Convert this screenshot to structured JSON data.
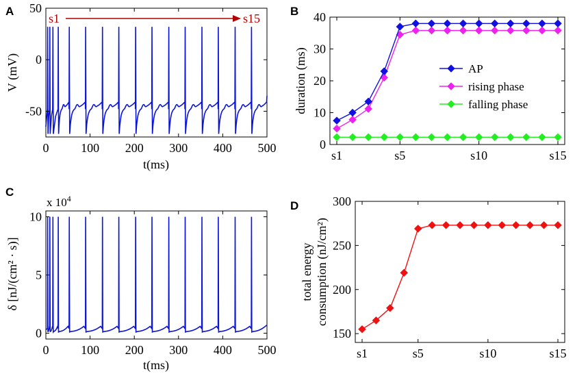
{
  "panels": {
    "a": "A",
    "b": "B",
    "c": "C",
    "d": "D"
  },
  "chart_data": [
    {
      "id": "A",
      "type": "line",
      "xlabel": "t(ms)",
      "ylabel": "V (mV)",
      "xlim": [
        0,
        500
      ],
      "ylim": [
        -75,
        50
      ],
      "xticks": [
        "0",
        "100",
        "200",
        "300",
        "400",
        "500"
      ],
      "xtick_values": [
        0,
        100,
        200,
        300,
        400,
        500
      ],
      "yticks": [
        "50",
        "0",
        "-50"
      ],
      "ytick_values": [
        50,
        0,
        -50
      ],
      "spike_peak": 32,
      "spike_trough": -72,
      "spike_times": [
        4,
        9,
        16,
        28,
        53,
        90,
        128,
        165,
        203,
        240,
        278,
        315,
        353,
        390,
        428,
        465
      ],
      "arrow_start": "s1",
      "arrow_end": "s15",
      "color": "#0a14d8"
    },
    {
      "id": "B",
      "type": "line",
      "xlabel": "",
      "ylabel": "duration (ms)",
      "ylim": [
        0,
        40
      ],
      "xlim": [
        1,
        15
      ],
      "xticks": [
        "s1",
        "s5",
        "s10",
        "s15"
      ],
      "xtick_values": [
        1,
        5,
        10,
        15
      ],
      "yticks": [
        "0",
        "10",
        "20",
        "30",
        "40"
      ],
      "ytick_values": [
        0,
        10,
        20,
        30,
        40
      ],
      "x": [
        1,
        2,
        3,
        4,
        5,
        6,
        7,
        8,
        9,
        10,
        11,
        12,
        13,
        14,
        15
      ],
      "series": [
        {
          "name": "AP",
          "color": "#1010e0",
          "values": [
            7.5,
            10,
            13.5,
            23,
            37,
            38,
            38,
            38,
            38,
            38,
            38,
            38,
            38,
            38,
            38
          ]
        },
        {
          "name": "rising phase",
          "color": "#ee22ee",
          "values": [
            5,
            7.8,
            11.2,
            21,
            34.5,
            35.8,
            35.8,
            35.8,
            35.8,
            35.8,
            35.8,
            35.8,
            35.8,
            35.8,
            35.8
          ]
        },
        {
          "name": "falling phase",
          "color": "#22ee22",
          "values": [
            2.3,
            2.3,
            2.3,
            2.3,
            2.3,
            2.3,
            2.3,
            2.3,
            2.3,
            2.3,
            2.3,
            2.3,
            2.3,
            2.3,
            2.3
          ]
        }
      ],
      "legend": "center-right"
    },
    {
      "id": "C",
      "type": "line",
      "xlabel": "t(ms)",
      "ylabel": "δ [nJ/(cm² · s)]",
      "multiplier": "x 10",
      "multiplier_exp": "4",
      "xlim": [
        0,
        500
      ],
      "ylim": [
        -0.5,
        10.5
      ],
      "xticks": [
        "0",
        "100",
        "200",
        "300",
        "400",
        "500"
      ],
      "xtick_values": [
        0,
        100,
        200,
        300,
        400,
        500
      ],
      "yticks": [
        "10",
        "5",
        "0"
      ],
      "ytick_values": [
        10,
        5,
        0
      ],
      "spike_peak": 10,
      "spike_times": [
        4,
        9,
        16,
        28,
        53,
        90,
        128,
        165,
        203,
        240,
        278,
        315,
        353,
        390,
        428,
        465
      ],
      "color": "#0a14d8"
    },
    {
      "id": "D",
      "type": "line",
      "xlabel": "",
      "ylabel_line1": "total energy",
      "ylabel_line2": "consumption (nJ/cm²)",
      "xlim": [
        1,
        15
      ],
      "ylim": [
        140,
        300
      ],
      "xticks": [
        "s1",
        "s5",
        "s10",
        "s15"
      ],
      "xtick_values": [
        1,
        5,
        10,
        15
      ],
      "yticks": [
        "150",
        "200",
        "250",
        "300"
      ],
      "ytick_values": [
        150,
        200,
        250,
        300
      ],
      "x": [
        1,
        2,
        3,
        4,
        5,
        6,
        7,
        8,
        9,
        10,
        11,
        12,
        13,
        14,
        15
      ],
      "series": [
        {
          "name": "total energy",
          "color": "#ee1111",
          "values": [
            155,
            165,
            179,
            219,
            269,
            273,
            273,
            273,
            273,
            273,
            273,
            273,
            273,
            273,
            273
          ]
        }
      ]
    }
  ]
}
